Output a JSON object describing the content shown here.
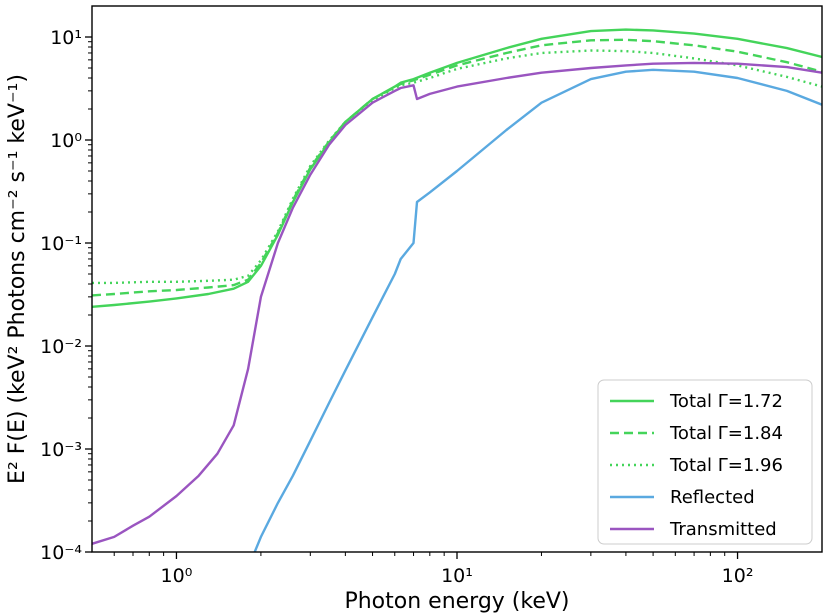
{
  "chart_data": {
    "type": "line",
    "xscale": "log",
    "yscale": "log",
    "xlim": [
      0.5,
      200
    ],
    "ylim": [
      0.0001,
      20
    ],
    "xlabel": "Photon energy (keV)",
    "ylabel": "E² F(E) (keV² Photons cm⁻² s⁻¹ keV⁻¹)",
    "xticks": [
      {
        "value": 1,
        "label": "10⁰"
      },
      {
        "value": 10,
        "label": "10¹"
      },
      {
        "value": 100,
        "label": "10²"
      }
    ],
    "yticks": [
      {
        "value": 0.0001,
        "label": "10⁻⁴"
      },
      {
        "value": 0.001,
        "label": "10⁻³"
      },
      {
        "value": 0.01,
        "label": "10⁻²"
      },
      {
        "value": 0.1,
        "label": "10⁻¹"
      },
      {
        "value": 1,
        "label": "10⁰"
      },
      {
        "value": 10,
        "label": "10¹"
      }
    ],
    "legend_position": "lower-right",
    "series": [
      {
        "name": "Total Γ=1.72",
        "color": "#44d45a",
        "dash": "solid",
        "points": [
          [
            0.5,
            0.024
          ],
          [
            0.6,
            0.025
          ],
          [
            0.8,
            0.027
          ],
          [
            1.0,
            0.029
          ],
          [
            1.3,
            0.032
          ],
          [
            1.6,
            0.036
          ],
          [
            1.8,
            0.042
          ],
          [
            2.0,
            0.06
          ],
          [
            2.3,
            0.12
          ],
          [
            2.6,
            0.25
          ],
          [
            3.0,
            0.52
          ],
          [
            3.5,
            0.95
          ],
          [
            4.0,
            1.5
          ],
          [
            5.0,
            2.5
          ],
          [
            6.0,
            3.3
          ],
          [
            6.3,
            3.6
          ],
          [
            7.0,
            3.9
          ],
          [
            8.0,
            4.5
          ],
          [
            10,
            5.6
          ],
          [
            15,
            7.8
          ],
          [
            20,
            9.6
          ],
          [
            30,
            11.4
          ],
          [
            40,
            11.8
          ],
          [
            50,
            11.6
          ],
          [
            70,
            10.8
          ],
          [
            100,
            9.6
          ],
          [
            150,
            7.8
          ],
          [
            200,
            6.4
          ]
        ]
      },
      {
        "name": "Total Γ=1.84",
        "color": "#44d45a",
        "dash": "dashed",
        "points": [
          [
            0.5,
            0.031
          ],
          [
            0.6,
            0.032
          ],
          [
            0.8,
            0.034
          ],
          [
            1.0,
            0.035
          ],
          [
            1.3,
            0.037
          ],
          [
            1.6,
            0.039
          ],
          [
            1.8,
            0.044
          ],
          [
            2.0,
            0.064
          ],
          [
            2.3,
            0.125
          ],
          [
            2.6,
            0.26
          ],
          [
            3.0,
            0.54
          ],
          [
            3.5,
            0.97
          ],
          [
            4.0,
            1.5
          ],
          [
            5.0,
            2.5
          ],
          [
            6.0,
            3.25
          ],
          [
            6.3,
            3.5
          ],
          [
            7.0,
            3.8
          ],
          [
            8.0,
            4.3
          ],
          [
            10,
            5.3
          ],
          [
            15,
            7.0
          ],
          [
            20,
            8.3
          ],
          [
            30,
            9.3
          ],
          [
            40,
            9.4
          ],
          [
            50,
            9.1
          ],
          [
            70,
            8.3
          ],
          [
            100,
            7.2
          ],
          [
            150,
            5.7
          ],
          [
            200,
            4.6
          ]
        ]
      },
      {
        "name": "Total Γ=1.96",
        "color": "#44d45a",
        "dash": "dotted",
        "points": [
          [
            0.5,
            0.041
          ],
          [
            0.6,
            0.041
          ],
          [
            0.8,
            0.042
          ],
          [
            1.0,
            0.042
          ],
          [
            1.3,
            0.043
          ],
          [
            1.6,
            0.044
          ],
          [
            1.8,
            0.048
          ],
          [
            2.0,
            0.068
          ],
          [
            2.3,
            0.13
          ],
          [
            2.6,
            0.27
          ],
          [
            3.0,
            0.56
          ],
          [
            3.5,
            0.99
          ],
          [
            4.0,
            1.5
          ],
          [
            5.0,
            2.4
          ],
          [
            6.0,
            3.2
          ],
          [
            6.3,
            3.4
          ],
          [
            7.0,
            3.6
          ],
          [
            8.0,
            4.0
          ],
          [
            10,
            4.9
          ],
          [
            15,
            6.2
          ],
          [
            20,
            7.0
          ],
          [
            30,
            7.4
          ],
          [
            40,
            7.3
          ],
          [
            50,
            7.0
          ],
          [
            70,
            6.2
          ],
          [
            100,
            5.3
          ],
          [
            150,
            4.1
          ],
          [
            200,
            3.3
          ]
        ]
      },
      {
        "name": "Reflected",
        "color": "#5aa9e0",
        "dash": "solid",
        "points": [
          [
            1.9,
            0.0001
          ],
          [
            2.0,
            0.00014
          ],
          [
            2.3,
            0.0003
          ],
          [
            2.6,
            0.00055
          ],
          [
            3.0,
            0.0012
          ],
          [
            3.5,
            0.0028
          ],
          [
            4.0,
            0.0058
          ],
          [
            5.0,
            0.019
          ],
          [
            6.0,
            0.05
          ],
          [
            6.3,
            0.07
          ],
          [
            7.0,
            0.1
          ],
          [
            7.2,
            0.25
          ],
          [
            8.0,
            0.31
          ],
          [
            10,
            0.5
          ],
          [
            15,
            1.25
          ],
          [
            20,
            2.3
          ],
          [
            30,
            3.9
          ],
          [
            40,
            4.6
          ],
          [
            50,
            4.8
          ],
          [
            70,
            4.6
          ],
          [
            100,
            4.0
          ],
          [
            150,
            3.0
          ],
          [
            200,
            2.2
          ]
        ]
      },
      {
        "name": "Transmitted",
        "color": "#9a55c0",
        "dash": "solid",
        "points": [
          [
            0.5,
            0.00012
          ],
          [
            0.6,
            0.00014
          ],
          [
            0.7,
            0.00018
          ],
          [
            0.8,
            0.00022
          ],
          [
            1.0,
            0.00035
          ],
          [
            1.2,
            0.00055
          ],
          [
            1.4,
            0.0009
          ],
          [
            1.6,
            0.0017
          ],
          [
            1.8,
            0.006
          ],
          [
            2.0,
            0.03
          ],
          [
            2.3,
            0.1
          ],
          [
            2.6,
            0.22
          ],
          [
            3.0,
            0.46
          ],
          [
            3.5,
            0.9
          ],
          [
            4.0,
            1.4
          ],
          [
            5.0,
            2.3
          ],
          [
            6.0,
            3.0
          ],
          [
            6.3,
            3.2
          ],
          [
            7.0,
            3.4
          ],
          [
            7.2,
            2.5
          ],
          [
            8.0,
            2.8
          ],
          [
            10,
            3.3
          ],
          [
            15,
            4.0
          ],
          [
            20,
            4.5
          ],
          [
            30,
            5.0
          ],
          [
            40,
            5.3
          ],
          [
            50,
            5.5
          ],
          [
            70,
            5.6
          ],
          [
            100,
            5.5
          ],
          [
            150,
            5.1
          ],
          [
            200,
            4.5
          ]
        ]
      }
    ]
  }
}
